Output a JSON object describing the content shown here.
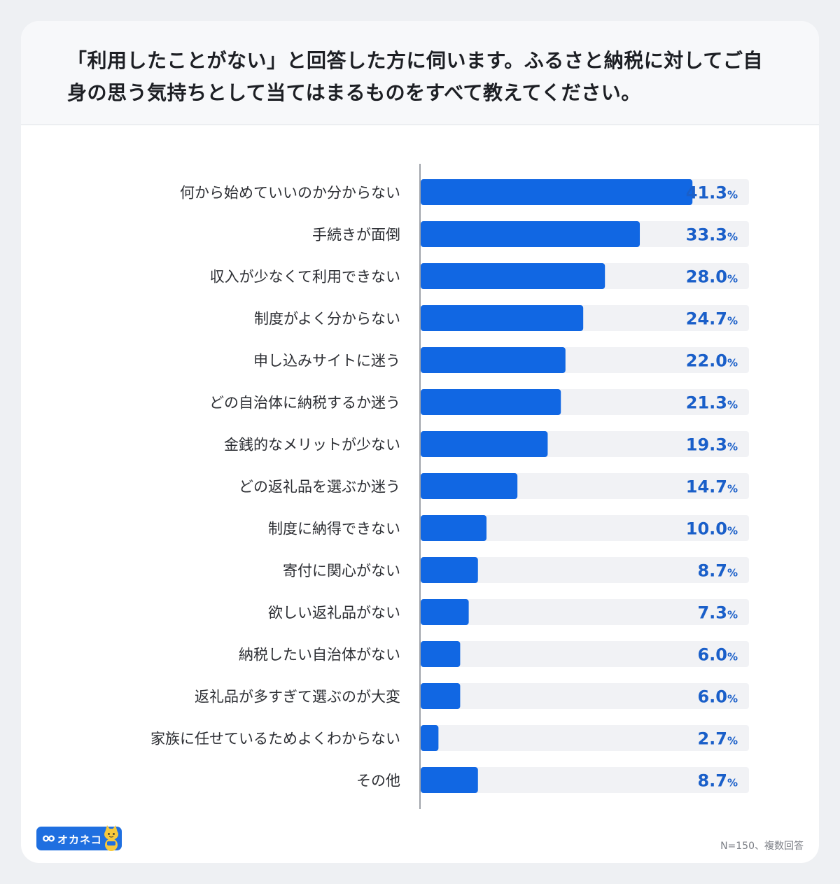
{
  "title": "「利用したことがない」と回答した方に伺います。ふるさと納税に対してご自身の思う気持ちとして当てはまるものをすべて教えてください。",
  "note": "N=150、複数回答",
  "logo": {
    "text": "オカネコ",
    "icon": "cat-icon"
  },
  "colors": {
    "bar": "#1167e3",
    "track": "#f1f2f5",
    "value": "#1a5fc9"
  },
  "chart_data": {
    "type": "bar",
    "orientation": "horizontal",
    "unit": "%",
    "xlim": [
      0,
      50
    ],
    "categories": [
      "何から始めていいのか分からない",
      "手続きが面倒",
      "収入が少なくて利用できない",
      "制度がよく分からない",
      "申し込みサイトに迷う",
      "どの自治体に納税するか迷う",
      "金銭的なメリットが少ない",
      "どの返礼品を選ぶか迷う",
      "制度に納得できない",
      "寄付に関心がない",
      "欲しい返礼品がない",
      "納税したい自治体がない",
      "返礼品が多すぎて選ぶのが大変",
      "家族に任せているためよくわからない",
      "その他"
    ],
    "values": [
      41.3,
      33.3,
      28.0,
      24.7,
      22.0,
      21.3,
      19.3,
      14.7,
      10.0,
      8.7,
      7.3,
      6.0,
      6.0,
      2.7,
      8.7
    ],
    "value_labels": [
      "41.3",
      "33.3",
      "28.0",
      "24.7",
      "22.0",
      "21.3",
      "19.3",
      "14.7",
      "10.0",
      "8.7",
      "7.3",
      "6.0",
      "6.0",
      "2.7",
      "8.7"
    ]
  }
}
